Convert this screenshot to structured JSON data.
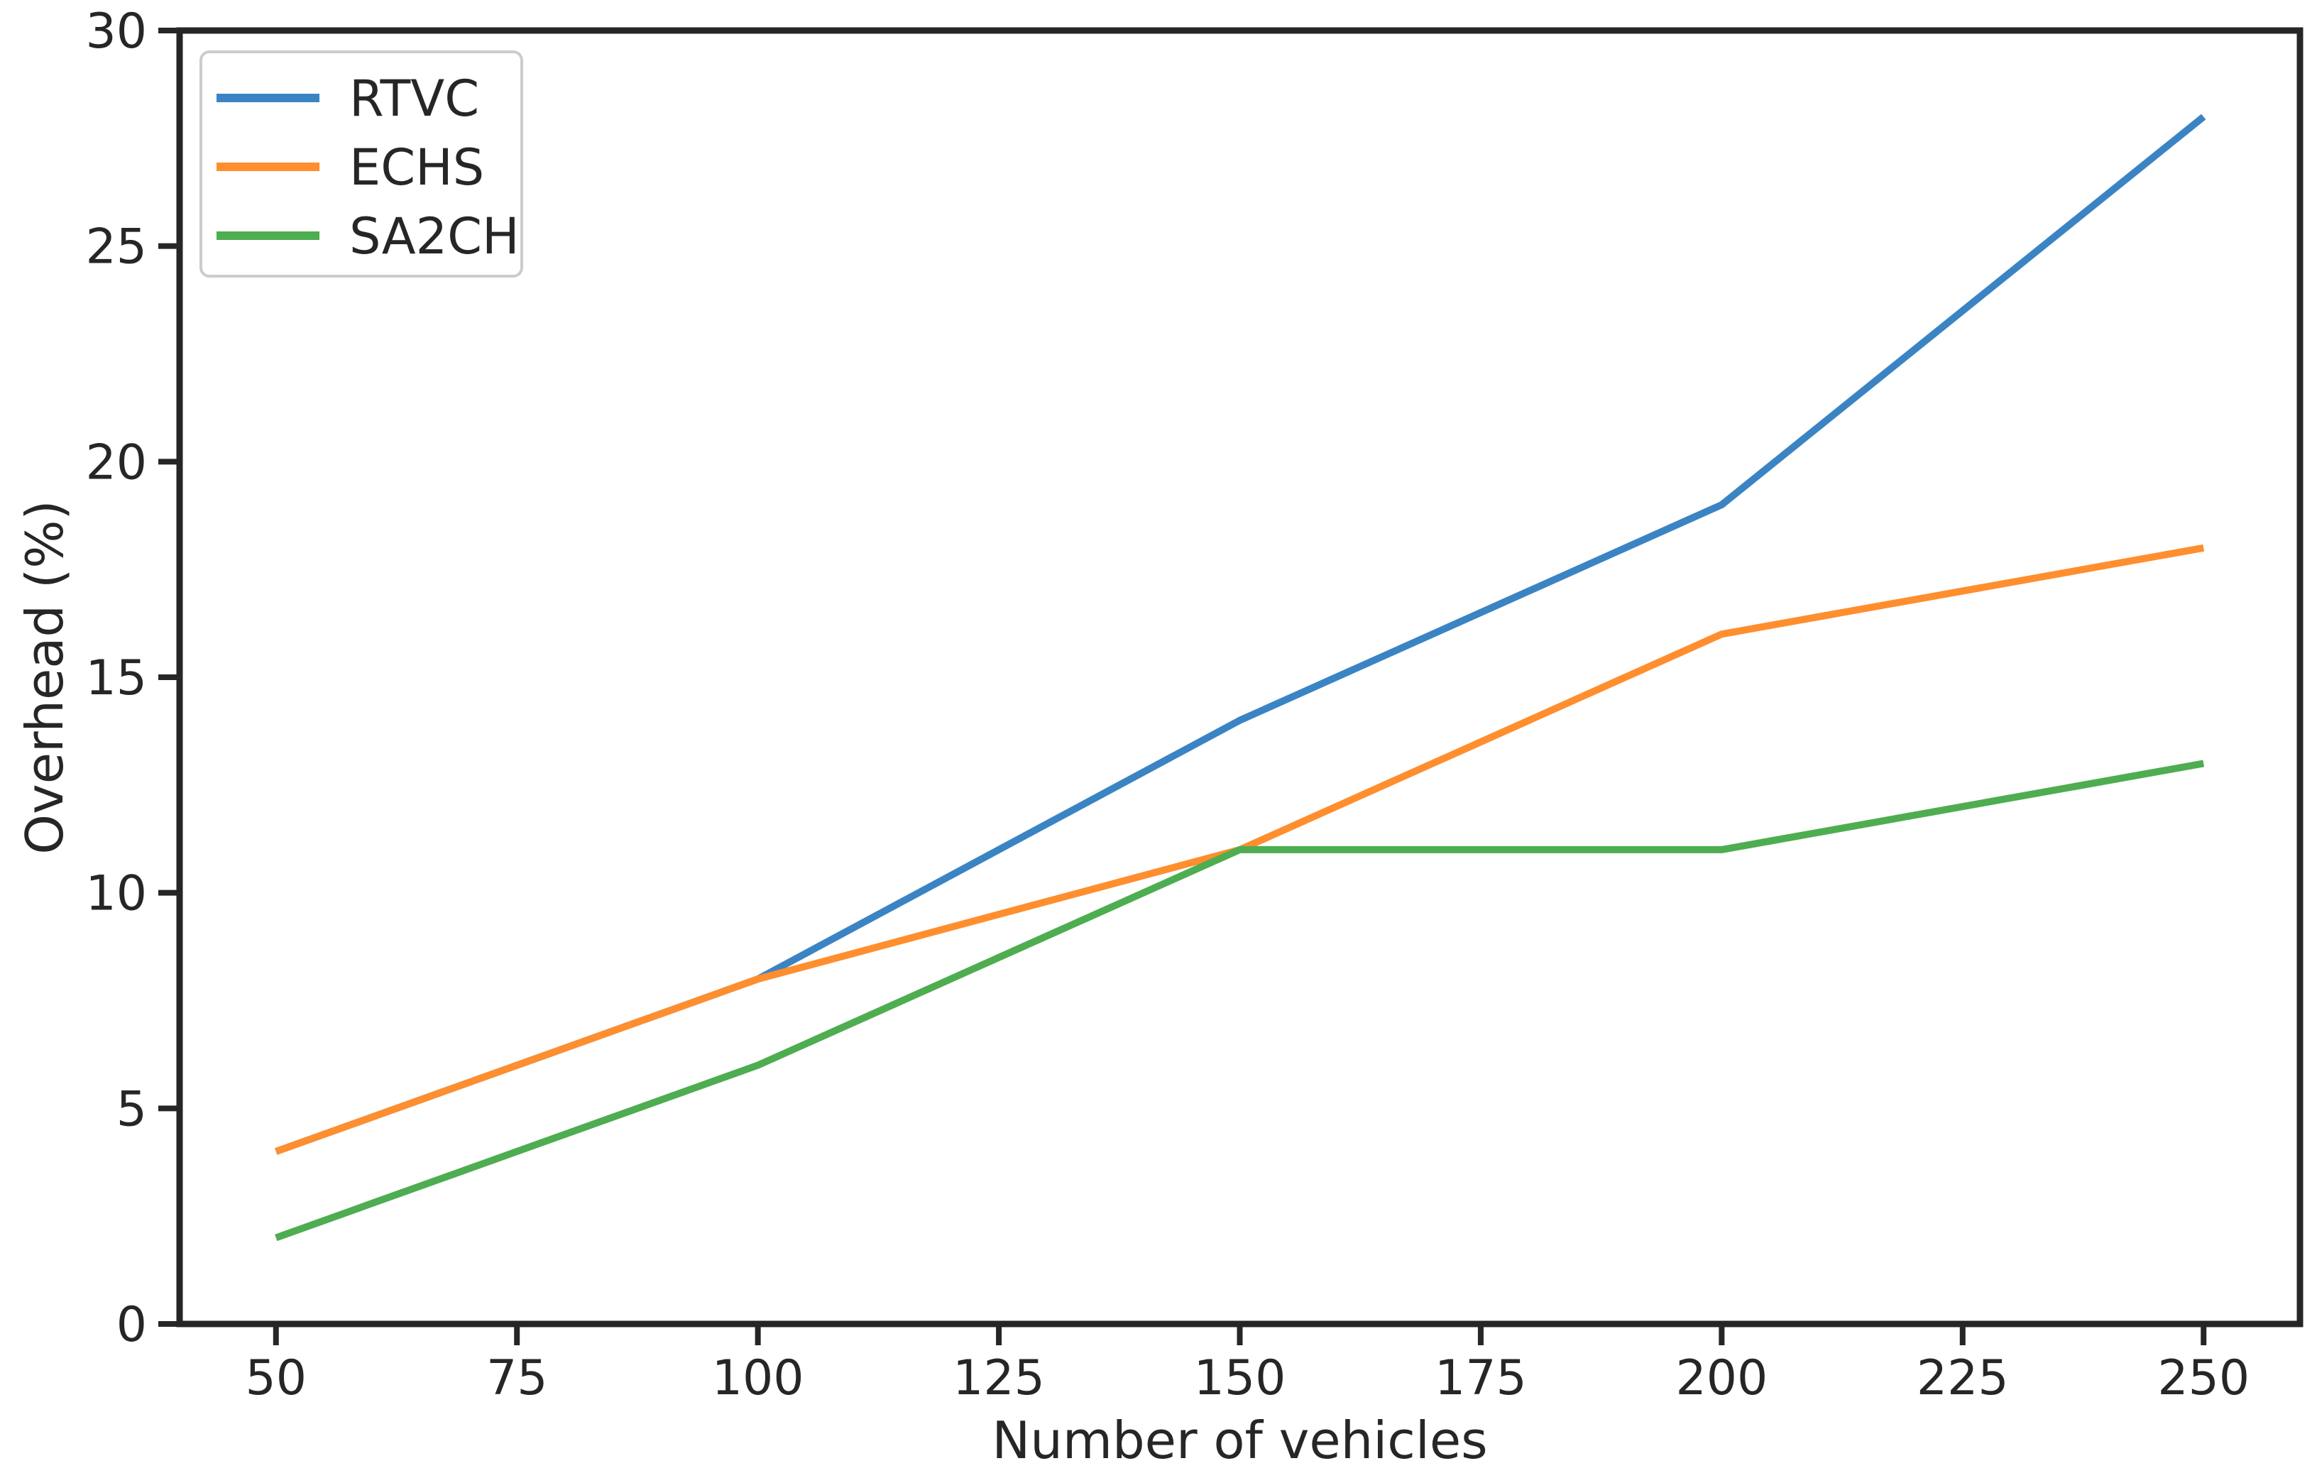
{
  "chart_data": {
    "type": "line",
    "title": "",
    "xlabel": "Number of vehicles",
    "ylabel": "Overhead (%)",
    "x": [
      50,
      100,
      150,
      200,
      250
    ],
    "series": [
      {
        "name": "RTVC",
        "color": "#3b84c4",
        "values": [
          4,
          8,
          14,
          19,
          28
        ]
      },
      {
        "name": "ECHS",
        "color": "#ff8e2e",
        "values": [
          4,
          8,
          11,
          16,
          18
        ]
      },
      {
        "name": "SA2CH",
        "color": "#4ead50",
        "values": [
          2,
          6,
          11,
          11,
          13
        ]
      }
    ],
    "xticks": [
      50,
      75,
      100,
      125,
      150,
      175,
      200,
      225,
      250
    ],
    "yticks": [
      0,
      5,
      10,
      15,
      20,
      25,
      30
    ],
    "xlim": [
      40,
      260
    ],
    "ylim": [
      0,
      30
    ],
    "grid": false,
    "legend_position": "upper-left",
    "axis_color": "#262626",
    "tick_label_color": "#262626",
    "legend_border_color": "#cccccc",
    "legend_background": "#ffffff"
  }
}
